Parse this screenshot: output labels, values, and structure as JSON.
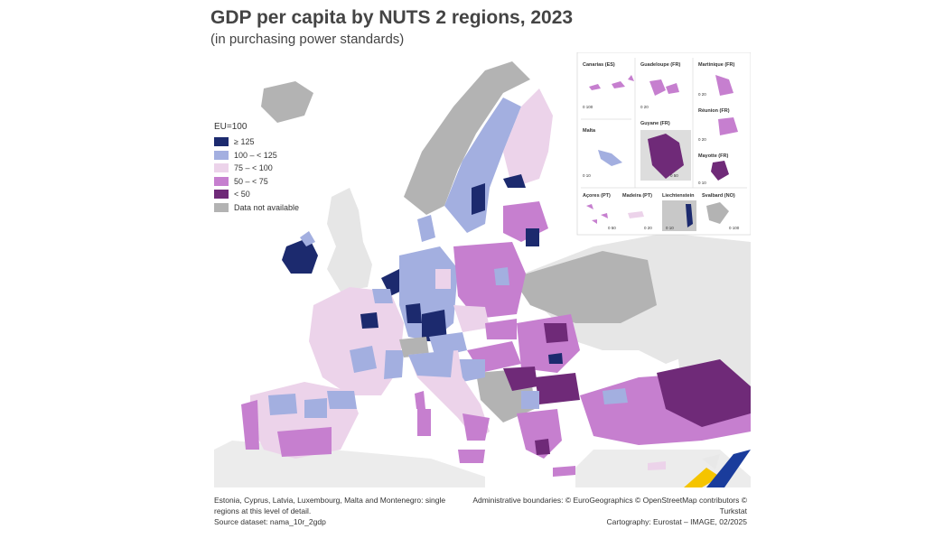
{
  "title": "GDP per capita by NUTS 2 regions, 2023",
  "subtitle": "(in purchasing power standards)",
  "legend": {
    "title": "EU=100",
    "items": [
      {
        "label": "≥ 125",
        "color": "#1c2a6e"
      },
      {
        "label": "100 – < 125",
        "color": "#a3afe0"
      },
      {
        "label": "75 – < 100",
        "color": "#ecd3ea"
      },
      {
        "label": "50 – < 75",
        "color": "#c67fcf"
      },
      {
        "label": "< 50",
        "color": "#6f2a78"
      },
      {
        "label": "Data not available",
        "color": "#b3b3b3"
      }
    ]
  },
  "insets": [
    {
      "name": "Canarias (ES)",
      "scale": "0   100"
    },
    {
      "name": "Guadeloupe (FR)",
      "scale": "0   20"
    },
    {
      "name": "Martinique (FR)",
      "scale": "0   20"
    },
    {
      "name": "Réunion (FR)",
      "scale": "0   20"
    },
    {
      "name": "Malta",
      "scale": "0   10"
    },
    {
      "name": "Guyane (FR)",
      "scale": "0   50"
    },
    {
      "name": "Mayotte (FR)",
      "scale": "0   10"
    },
    {
      "name": "Açores (PT)",
      "scale": "0   50"
    },
    {
      "name": "Madeira (PT)",
      "scale": "0   20"
    },
    {
      "name": "Liechtenstein",
      "scale": "0   10"
    },
    {
      "name": "Svalbard (NO)",
      "scale": "0   100"
    }
  ],
  "footer": {
    "note": "Estonia, Cyprus, Latvia, Luxembourg, Malta and Montenegro: single regions at this level of detail.",
    "source": "Source dataset: nama_10r_2gdp",
    "boundaries": "Administrative boundaries: © EuroGeographics © OpenStreetMap contributors © Turkstat",
    "cartography": "Cartography: Eurostat – IMAGE, 02/2025"
  }
}
